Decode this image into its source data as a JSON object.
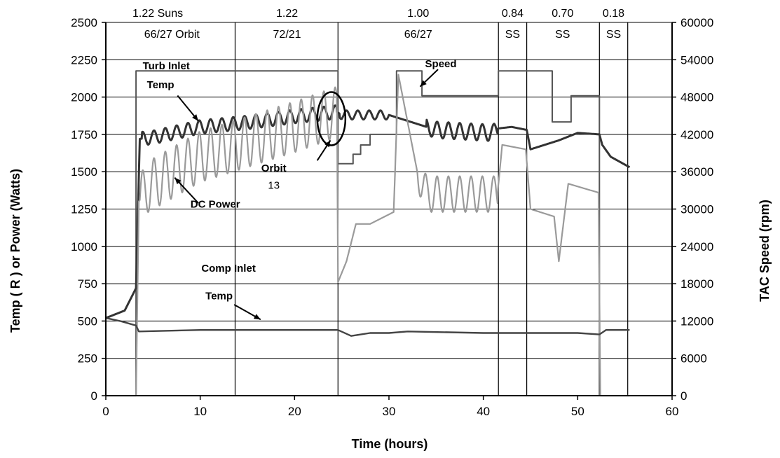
{
  "chart_data": {
    "type": "line",
    "title": "",
    "xlabel": "Time (hours)",
    "ylabel_left": "Temp ( R ) or Power (Watts)",
    "ylabel_right": "TAC Speed (rpm)",
    "xlim": [
      0,
      60
    ],
    "ylim_left": [
      0,
      2500
    ],
    "ylim_right": [
      0,
      60000
    ],
    "x_ticks": [
      0,
      10,
      20,
      30,
      40,
      50,
      60
    ],
    "y_left_ticks": [
      0,
      250,
      500,
      750,
      1000,
      1250,
      1500,
      1750,
      2000,
      2250,
      2500
    ],
    "y_right_ticks": [
      0,
      6000,
      12000,
      18000,
      24000,
      30000,
      36000,
      42000,
      48000,
      54000,
      60000
    ],
    "grid": true,
    "phase_dividers_x": [
      13.7,
      24.6,
      41.6,
      44.6,
      52.3,
      55.3
    ],
    "phases_top": [
      {
        "x": 5.5,
        "label": "1.22 Suns"
      },
      {
        "x": 19.2,
        "label": "1.22"
      },
      {
        "x": 33.1,
        "label": "1.00"
      },
      {
        "x": 43.1,
        "label": "0.84"
      },
      {
        "x": 48.4,
        "label": "0.70"
      },
      {
        "x": 53.8,
        "label": "0.18"
      }
    ],
    "phases_inner": [
      {
        "x": 7.0,
        "label": "66/27 Orbit"
      },
      {
        "x": 19.2,
        "label": "72/21"
      },
      {
        "x": 33.1,
        "label": "66/27"
      },
      {
        "x": 43.1,
        "label": "SS"
      },
      {
        "x": 48.4,
        "label": "SS"
      },
      {
        "x": 53.8,
        "label": "SS"
      }
    ],
    "series": [
      {
        "name": "Speed",
        "axis": "right",
        "style": "stepped",
        "x": [
          0,
          3.2,
          3.2,
          24.6,
          24.6,
          26.2,
          26.2,
          27.0,
          27.0,
          28.0,
          28.0,
          30.8,
          30.8,
          33.5,
          33.5,
          41.6,
          41.6,
          44.6,
          44.6,
          47.3,
          47.3,
          49.3,
          49.3,
          52.3,
          52.3,
          55.5
        ],
        "values": [
          0,
          0,
          52200,
          52200,
          37300,
          37300,
          38800,
          38800,
          40300,
          40300,
          42000,
          42000,
          52200,
          52200,
          48200,
          48200,
          52200,
          52200,
          52200,
          52200,
          44000,
          44000,
          48200,
          48200,
          0,
          0
        ]
      },
      {
        "name": "Turb Inlet Temp",
        "axis": "left",
        "style": "oscillating",
        "x": [
          0,
          2.0,
          3.2,
          3.6,
          5,
          10,
          15,
          20,
          24.5,
          25,
          30,
          31.5,
          35,
          41,
          41.6,
          43,
          44.6,
          45,
          48,
          50,
          52.3,
          52.6,
          53.5,
          55.5
        ],
        "values": [
          520,
          570,
          720,
          1720,
          1730,
          1800,
          1830,
          1870,
          1900,
          1880,
          1880,
          1850,
          1780,
          1760,
          1790,
          1800,
          1780,
          1650,
          1710,
          1760,
          1750,
          1680,
          1600,
          1530
        ]
      },
      {
        "name": "DC Power",
        "axis": "left",
        "style": "oscillating",
        "x": [
          0,
          3.2,
          3.5,
          4.5,
          10,
          15,
          20,
          24.5,
          24.6,
          25.5,
          26.5,
          28,
          30.5,
          31,
          33,
          34,
          41.5,
          42,
          44.5,
          45,
          47.5,
          48,
          49,
          52.2,
          52.4,
          55.5
        ],
        "values": [
          0,
          0,
          1300,
          1400,
          1600,
          1700,
          1800,
          1900,
          760,
          900,
          1150,
          1150,
          1230,
          2150,
          1500,
          1350,
          1350,
          1680,
          1650,
          1250,
          1200,
          900,
          1420,
          1360,
          0,
          0
        ]
      },
      {
        "name": "Comp Inlet Temp",
        "axis": "left",
        "style": "smooth",
        "x": [
          0,
          1.5,
          3.2,
          3.5,
          10,
          20,
          24.6,
          26,
          28,
          30,
          32,
          40,
          45,
          50,
          52.3,
          53,
          55.5
        ],
        "values": [
          520,
          500,
          470,
          430,
          440,
          440,
          440,
          400,
          420,
          420,
          430,
          420,
          420,
          420,
          410,
          440,
          440
        ]
      }
    ],
    "annotations": [
      {
        "text": "Turb Inlet",
        "x": 6.4,
        "y": 2185
      },
      {
        "text": "Temp",
        "x": 5.8,
        "y": 2060
      },
      {
        "text": "Speed",
        "x": 35.5,
        "y": 2200
      },
      {
        "text": "Orbit",
        "x": 17.8,
        "y": 1500
      },
      {
        "text": "13",
        "x": 17.8,
        "y": 1385
      },
      {
        "text": "DC Power",
        "x": 11.6,
        "y": 1260
      },
      {
        "text": "Comp Inlet",
        "x": 13.0,
        "y": 830
      },
      {
        "text": "Temp",
        "x": 12.0,
        "y": 645
      }
    ]
  }
}
